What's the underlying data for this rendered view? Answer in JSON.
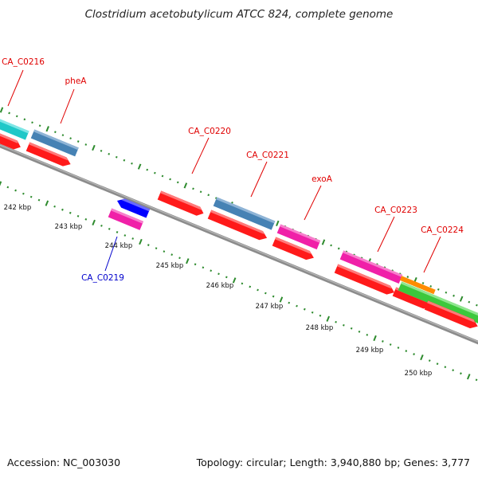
{
  "title": "Clostridium acetobutylicum ATCC 824, complete genome",
  "footer": {
    "accession": "Accession: NC_003030",
    "summary": "Topology: circular; Length: 3,940,880 bp; Genes: 3,777"
  },
  "colors": {
    "background": "#ffffff",
    "backbone": "#8c8c8c",
    "tick_marks": "#2e8b2e",
    "label_red": "#e00000",
    "label_blue": "#0000cc",
    "cds": "#ff1a1a",
    "gene_pink": "#f020a8",
    "gene_steelblue": "#4682b4",
    "gene_cyan": "#20c8c8",
    "gene_green": "#3cc83c",
    "gene_orange": "#ff8c00",
    "gene_blue": "#0000ff"
  },
  "kbp_ticks": [
    {
      "label": "242 kbp"
    },
    {
      "label": "243 kbp"
    },
    {
      "label": "244 kbp"
    },
    {
      "label": "245 kbp"
    },
    {
      "label": "246 kbp"
    },
    {
      "label": "247 kbp"
    },
    {
      "label": "248 kbp"
    },
    {
      "label": "249 kbp"
    },
    {
      "label": "250 kbp"
    }
  ],
  "gene_labels": [
    {
      "name": "CA_C0216",
      "strand": "forward"
    },
    {
      "name": "pheA",
      "strand": "forward"
    },
    {
      "name": "CA_C0219",
      "strand": "reverse"
    },
    {
      "name": "CA_C0220",
      "strand": "forward"
    },
    {
      "name": "CA_C0221",
      "strand": "forward"
    },
    {
      "name": "exoA",
      "strand": "forward"
    },
    {
      "name": "CA_C0223",
      "strand": "forward"
    },
    {
      "name": "CA_C0224",
      "strand": "forward"
    }
  ]
}
